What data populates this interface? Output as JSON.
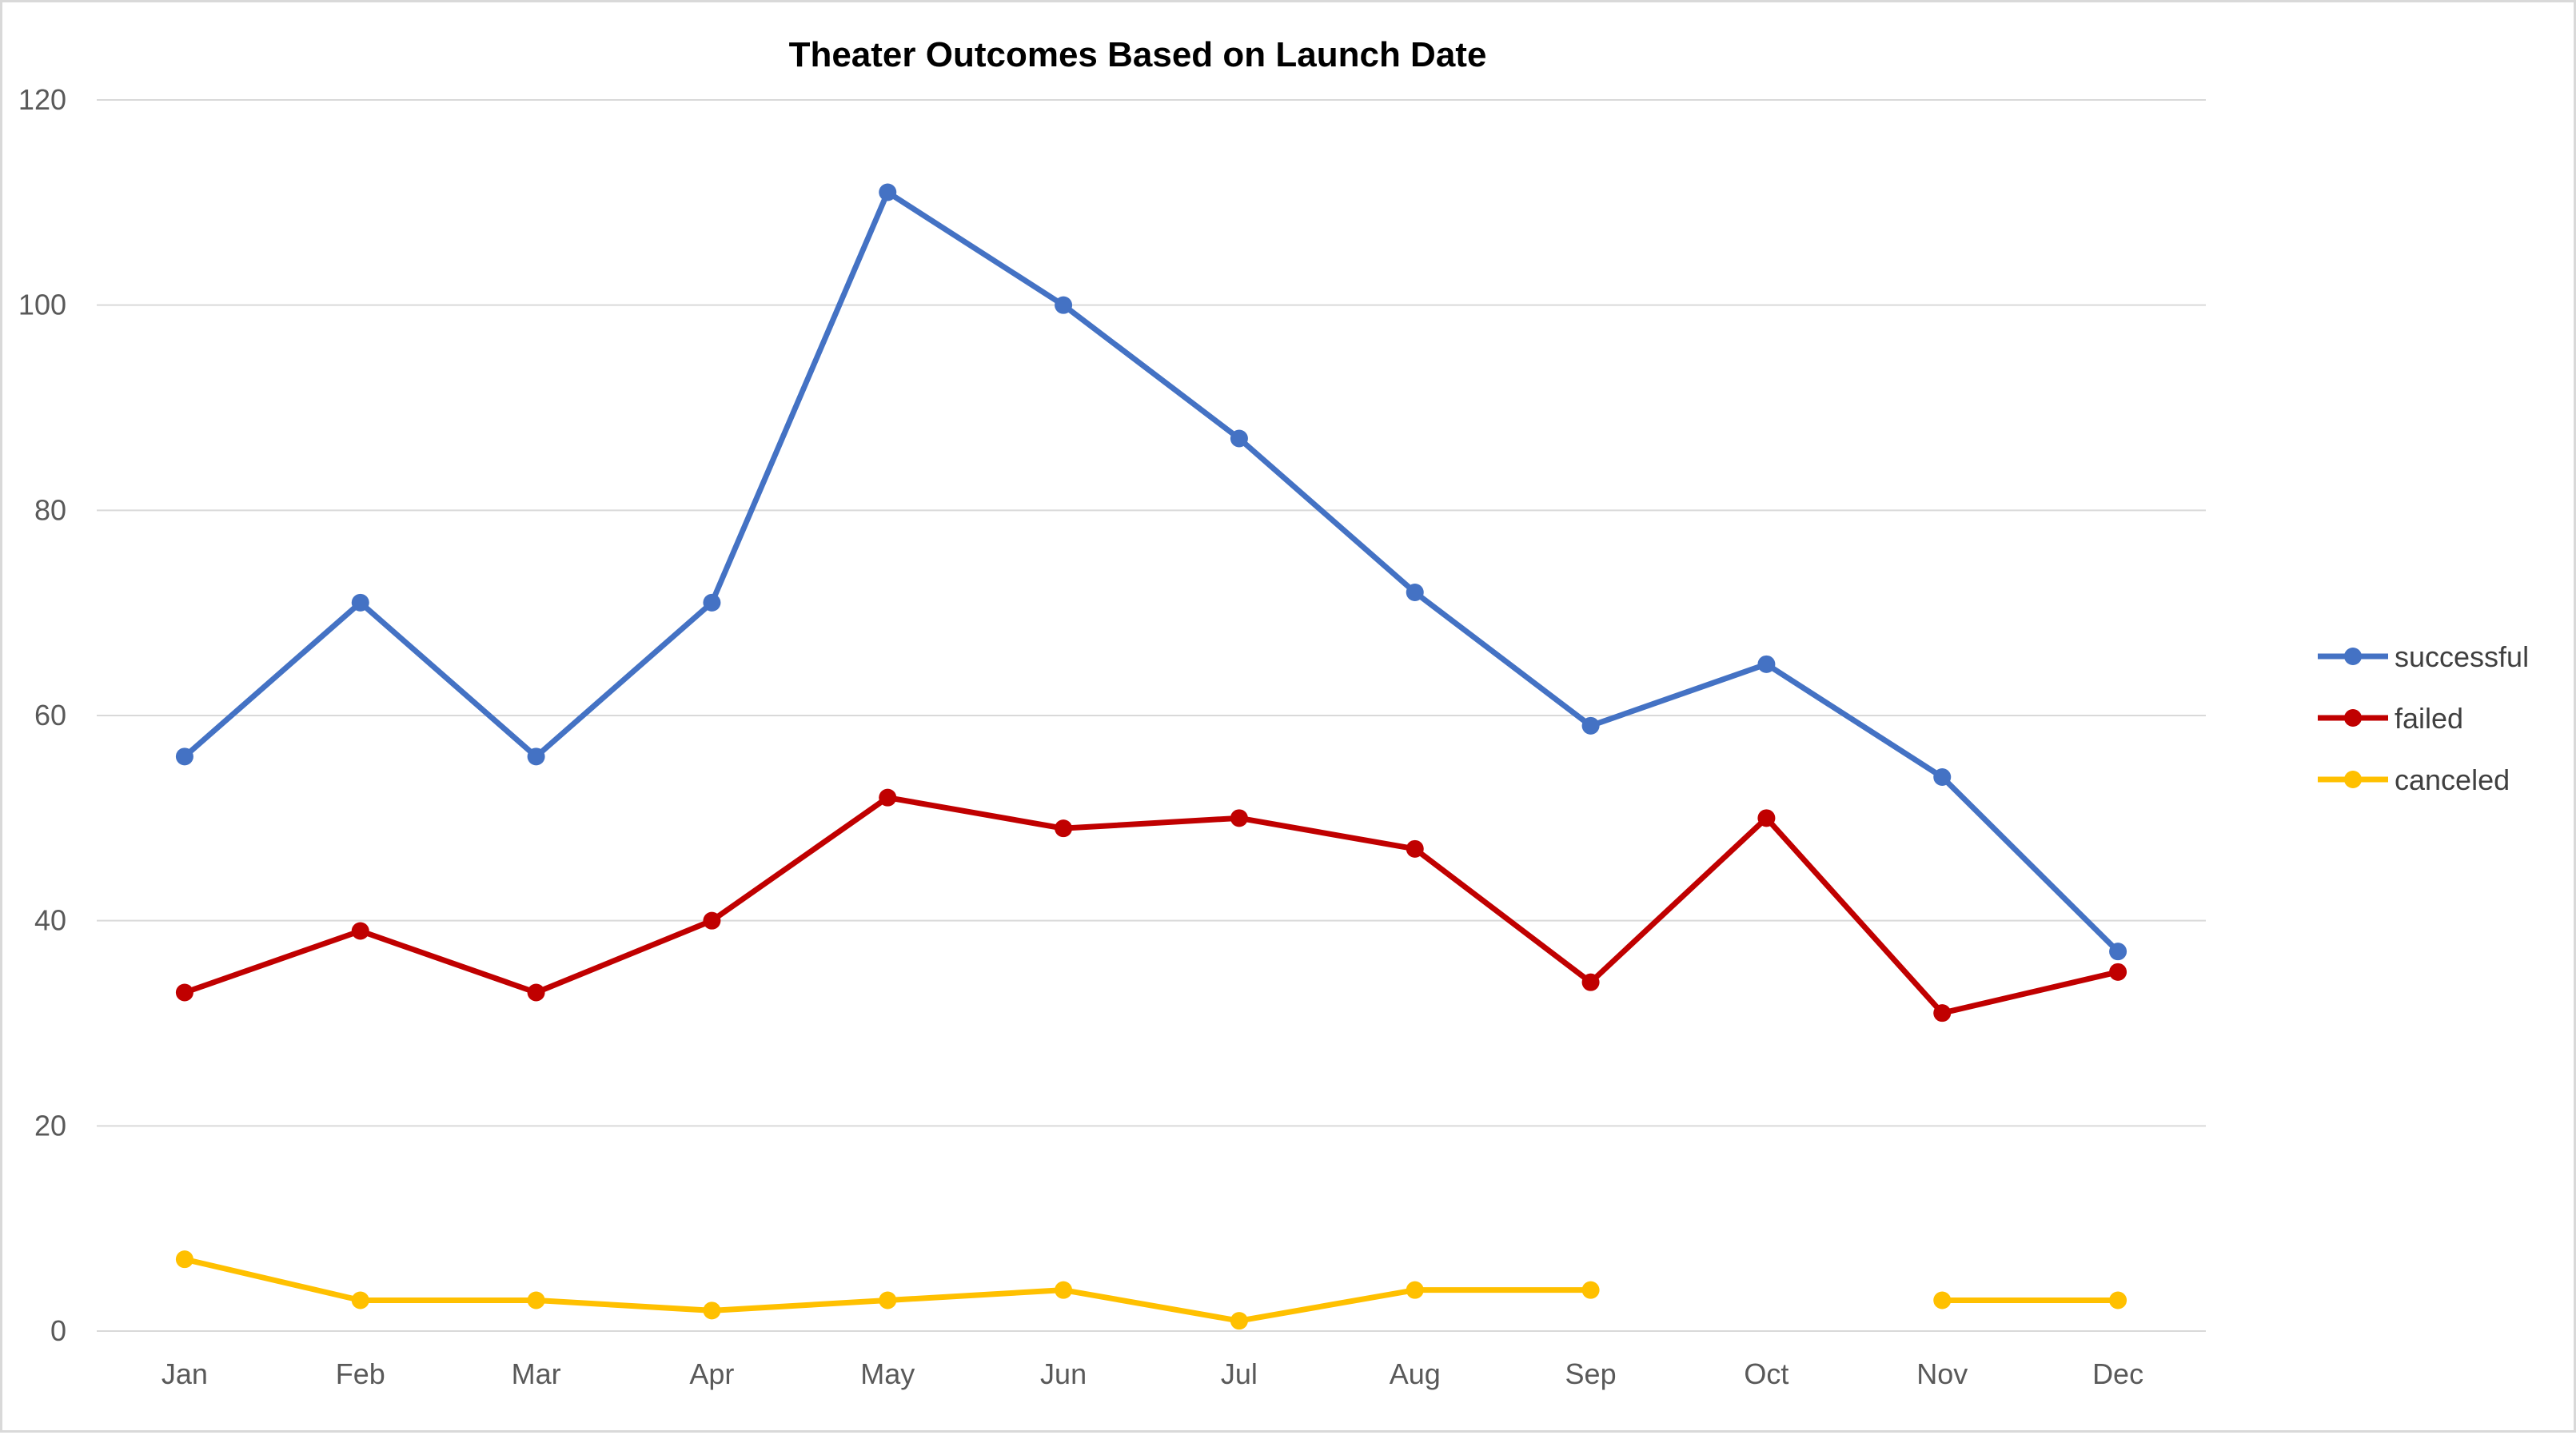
{
  "chart_data": {
    "type": "line",
    "title": "Theater Outcomes Based on Launch Date",
    "xlabel": "",
    "ylabel": "",
    "categories": [
      "Jan",
      "Feb",
      "Mar",
      "Apr",
      "May",
      "Jun",
      "Jul",
      "Aug",
      "Sep",
      "Oct",
      "Nov",
      "Dec"
    ],
    "ylim": [
      0,
      120
    ],
    "yticks": [
      0,
      20,
      40,
      60,
      80,
      100,
      120
    ],
    "grid": true,
    "legend_position": "right",
    "series": [
      {
        "name": "successful",
        "color": "#4472c4",
        "values": [
          56,
          71,
          56,
          71,
          111,
          100,
          87,
          72,
          59,
          65,
          54,
          37
        ]
      },
      {
        "name": "failed",
        "color": "#c00000",
        "values": [
          33,
          39,
          33,
          40,
          52,
          49,
          50,
          47,
          34,
          50,
          31,
          35
        ]
      },
      {
        "name": "canceled",
        "color": "#ffc000",
        "values": [
          7,
          3,
          3,
          2,
          3,
          4,
          1,
          4,
          4,
          null,
          3,
          3
        ]
      }
    ]
  }
}
